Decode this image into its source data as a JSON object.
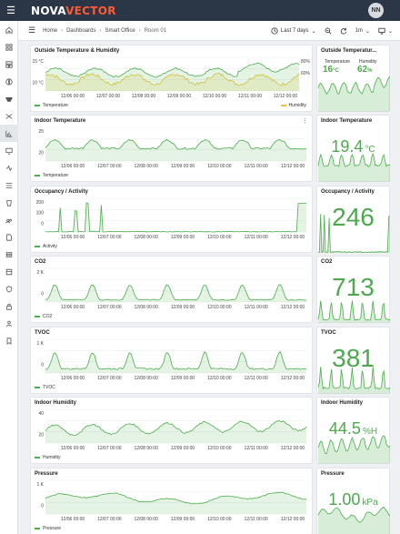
{
  "app": {
    "brand_part1": "NOVA",
    "brand_part2": "VECTOR",
    "user_initials": "NN"
  },
  "breadcrumb": [
    "Home",
    "Dashboards",
    "Smart Office",
    "Room 01"
  ],
  "toolbar": {
    "time_range": "Last 7 days",
    "refresh_interval": "1m"
  },
  "sidebar_icons": [
    "home-icon",
    "grid-icon",
    "dashboard-icon",
    "info-icon",
    "devices-icon",
    "shuffle-icon",
    "chart-icon",
    "monitor-icon",
    "activity-icon",
    "list-icon",
    "bucket-icon",
    "users-icon",
    "files-icon",
    "database-icon",
    "storage-icon",
    "shield-icon",
    "lock-icon",
    "person-icon",
    "bookmark-icon"
  ],
  "x_ticks": [
    "12/06 00:00",
    "12/07 00:00",
    "12/08 00:00",
    "12/09 00:00",
    "12/10 00:00",
    "12/11 00:00",
    "12/12 00:00"
  ],
  "panels": [
    {
      "title": "Outside Temperature & Humidity",
      "y_ticks": [
        "15 °C",
        "10 °C"
      ],
      "y2_ticks": [
        "80%",
        "60%"
      ],
      "legend": [
        "Temperature",
        "Humidity"
      ],
      "stat_title": "Outside Temperatur...",
      "mini": {
        "temp_label": "Temperature",
        "temp_value": "16",
        "temp_unit": "°C",
        "hum_label": "Humidity",
        "hum_value": "62",
        "hum_unit": "%"
      }
    },
    {
      "title": "Indoor Temperature",
      "y_ticks": [
        "25",
        "20"
      ],
      "legend": "Temperature",
      "stat_title": "Indoor Temperature",
      "stat_value": "19.4",
      "stat_unit": "°C"
    },
    {
      "title": "Occupancy / Activity",
      "y_ticks": [
        "200",
        "100",
        "0"
      ],
      "legend": "Activity",
      "stat_title": "Occupancy / Activity",
      "stat_value": "246",
      "stat_unit": ""
    },
    {
      "title": "CO2",
      "y_ticks": [
        "2 K",
        "0"
      ],
      "legend": "CO2",
      "stat_title": "CO2",
      "stat_value": "713",
      "stat_unit": ""
    },
    {
      "title": "TVOC",
      "y_ticks": [
        "1 K",
        "0"
      ],
      "legend": "TVOC",
      "stat_title": "TVOC",
      "stat_value": "381",
      "stat_unit": ""
    },
    {
      "title": "Indoor Humidity",
      "y_ticks": [
        "40",
        "20"
      ],
      "legend": "Humidity",
      "stat_title": "Indoor Humidity",
      "stat_value": "44.5",
      "stat_unit": "%H"
    },
    {
      "title": "Pressure",
      "y_ticks": [
        "1 K",
        "0"
      ],
      "legend": "Pressure",
      "stat_title": "Pressure",
      "stat_value": "1.00",
      "stat_unit": "kPa"
    }
  ],
  "colors": {
    "series_green": "#4cae4c",
    "humidity_yellow": "#e8c53a",
    "topbar": "#2b3647",
    "brand_accent": "#ff5a36"
  }
}
